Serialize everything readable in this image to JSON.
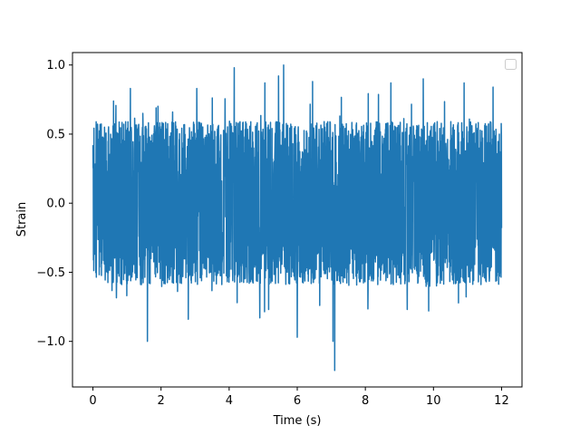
{
  "chart_data": {
    "type": "line",
    "title": "",
    "xlabel": "Time (s)",
    "ylabel": "Strain",
    "xlim": [
      -0.6,
      12.6
    ],
    "ylim": [
      -1.33,
      1.09
    ],
    "x_ticks": [
      0,
      2,
      4,
      6,
      8,
      10,
      12
    ],
    "y_ticks": [
      1.0,
      0.5,
      0.0,
      -0.5,
      -1.0
    ],
    "x_tick_labels": [
      "0",
      "2",
      "4",
      "6",
      "8",
      "10",
      "12"
    ],
    "y_tick_labels": [
      "1.0",
      "0.5",
      "0.0",
      "−0.5",
      "−1.0"
    ],
    "grid": false,
    "legend": {
      "placement": "top-right",
      "entries": []
    },
    "series": [
      {
        "color": "#1f77b4",
        "x_start": 0,
        "x_end": 12,
        "typical_range": [
          -0.5,
          0.5
        ],
        "peaks": [
          {
            "x": 4.15,
            "y": 0.98
          },
          {
            "x": 5.6,
            "y": 1.0
          },
          {
            "x": 7.1,
            "y": -1.21
          },
          {
            "x": 1.6,
            "y": -1.0
          },
          {
            "x": 7.05,
            "y": -1.0
          },
          {
            "x": 5.05,
            "y": 0.87
          },
          {
            "x": 1.1,
            "y": 0.83
          },
          {
            "x": 4.9,
            "y": -0.83
          },
          {
            "x": 5.45,
            "y": 0.92
          },
          {
            "x": 6.45,
            "y": 0.88
          },
          {
            "x": 9.7,
            "y": 0.9
          },
          {
            "x": 6.0,
            "y": -0.97
          },
          {
            "x": 3.05,
            "y": 0.83
          },
          {
            "x": 8.75,
            "y": 0.87
          },
          {
            "x": 10.9,
            "y": 0.87
          },
          {
            "x": 2.8,
            "y": -0.84
          },
          {
            "x": 11.75,
            "y": 0.84
          }
        ]
      }
    ]
  }
}
